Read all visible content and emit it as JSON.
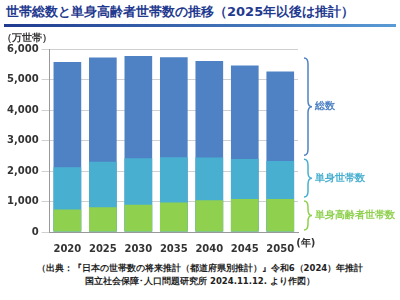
{
  "chart_data": {
    "type": "bar",
    "title": "世帯総数と単身高齢者世帯数の推移（2025年以後は推計）",
    "y_label": "（万世帯）",
    "x_label": "(年)",
    "categories": [
      "2020",
      "2025",
      "2030",
      "2035",
      "2040",
      "2045",
      "2050"
    ],
    "series": [
      {
        "name": "総数",
        "color": "#4f82c4",
        "values": [
          5570,
          5720,
          5770,
          5730,
          5610,
          5460,
          5260
        ]
      },
      {
        "name": "単身世帯数",
        "color": "#48afd0",
        "values": [
          2120,
          2300,
          2420,
          2450,
          2440,
          2390,
          2330
        ]
      },
      {
        "name": "単身高齢者世帯数",
        "color": "#8fd14f",
        "values": [
          740,
          810,
          890,
          970,
          1040,
          1080,
          1080
        ]
      }
    ],
    "ylim": [
      0,
      6000
    ],
    "yticks": [
      0,
      1000,
      2000,
      3000,
      4000,
      5000,
      6000
    ],
    "grid": true,
    "source": [
      "（出典：『日本の世帯数の将来推計（都道府県別推計）』令和6（2024）年推計",
      "国立社会保障･人口問題研究所 2024.11.12. より作図）"
    ]
  }
}
